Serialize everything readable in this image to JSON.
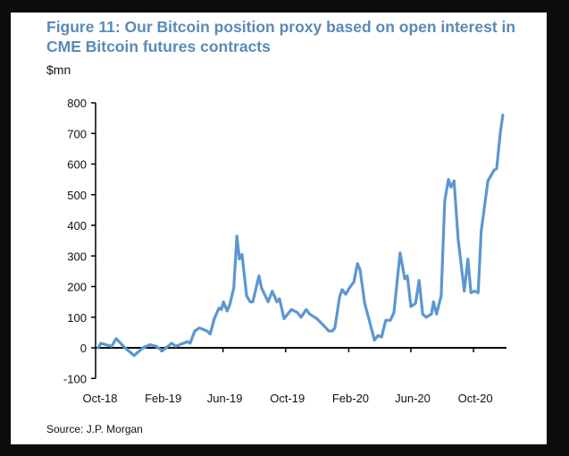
{
  "source": "Source: J.P. Morgan",
  "colors": {
    "line": "#5b97d1",
    "title": "#5a8ab8",
    "axis": "#000000"
  },
  "chart_data": {
    "type": "line",
    "title": "Figure 11: Our Bitcoin position proxy based on open interest in CME Bitcoin futures contracts",
    "ylabel": "$mn",
    "xlabel": "",
    "ylim": [
      -100,
      800
    ],
    "yticks": [
      "800",
      "700",
      "600",
      "500",
      "400",
      "300",
      "200",
      "100",
      "0",
      "-100"
    ],
    "ytick_values": [
      800,
      700,
      600,
      500,
      400,
      300,
      200,
      100,
      0,
      -100
    ],
    "xticks": [
      "Oct-18",
      "Feb-19",
      "Jun-19",
      "Oct-19",
      "Feb-20",
      "Jun-20",
      "Oct-20"
    ],
    "xtick_dates": [
      "2018-10-01",
      "2019-02-01",
      "2019-06-01",
      "2019-10-01",
      "2020-02-01",
      "2020-06-01",
      "2020-10-01"
    ],
    "grid": false,
    "legend": "none",
    "x": [
      "2018-10-01",
      "2018-10-06",
      "2018-10-27",
      "2018-11-05",
      "2018-11-22",
      "2018-12-10",
      "2018-12-27",
      "2019-01-10",
      "2019-01-22",
      "2019-02-03",
      "2019-02-21",
      "2019-03-01",
      "2019-03-24",
      "2019-03-29",
      "2019-04-07",
      "2019-04-16",
      "2019-05-01",
      "2019-05-07",
      "2019-05-15",
      "2019-05-24",
      "2019-05-29",
      "2019-06-02",
      "2019-06-09",
      "2019-06-14",
      "2019-06-22",
      "2019-06-28",
      "2019-07-03",
      "2019-07-08",
      "2019-07-17",
      "2019-07-24",
      "2019-07-29",
      "2019-08-10",
      "2019-08-15",
      "2019-08-28",
      "2019-09-05",
      "2019-09-14",
      "2019-09-19",
      "2019-09-28",
      "2019-10-12",
      "2019-10-24",
      "2019-10-31",
      "2019-11-10",
      "2019-11-17",
      "2019-12-01",
      "2019-12-13",
      "2019-12-24",
      "2019-12-31",
      "2020-01-05",
      "2020-01-14",
      "2020-01-19",
      "2020-01-26",
      "2020-02-04",
      "2020-02-11",
      "2020-02-18",
      "2020-02-23",
      "2020-03-03",
      "2020-03-11",
      "2020-03-22",
      "2020-03-29",
      "2020-04-05",
      "2020-04-13",
      "2020-04-22",
      "2020-04-29",
      "2020-05-11",
      "2020-05-20",
      "2020-05-25",
      "2020-06-01",
      "2020-06-10",
      "2020-06-17",
      "2020-06-24",
      "2020-07-01",
      "2020-07-11",
      "2020-07-15",
      "2020-07-21",
      "2020-07-30",
      "2020-08-06",
      "2020-08-13",
      "2020-08-18",
      "2020-08-24",
      "2020-09-01",
      "2020-09-13",
      "2020-09-20",
      "2020-09-26",
      "2020-10-03",
      "2020-10-10",
      "2020-10-16",
      "2020-10-29",
      "2020-11-10",
      "2020-11-15",
      "2020-11-22",
      "2020-11-27"
    ],
    "series": [
      {
        "values": [
          0,
          15,
          5,
          30,
          0,
          -25,
          0,
          10,
          5,
          -10,
          15,
          5,
          20,
          15,
          55,
          65,
          55,
          45,
          95,
          130,
          125,
          150,
          120,
          140,
          195,
          365,
          290,
          305,
          170,
          150,
          150,
          235,
          195,
          150,
          185,
          150,
          160,
          95,
          125,
          115,
          100,
          125,
          110,
          95,
          75,
          55,
          55,
          65,
          165,
          190,
          175,
          200,
          215,
          275,
          255,
          145,
          95,
          25,
          40,
          35,
          90,
          90,
          115,
          310,
          225,
          235,
          135,
          145,
          220,
          110,
          100,
          110,
          150,
          110,
          170,
          480,
          550,
          525,
          545,
          355,
          185,
          290,
          180,
          185,
          180,
          380,
          545,
          580,
          585,
          700,
          760
        ]
      }
    ]
  }
}
